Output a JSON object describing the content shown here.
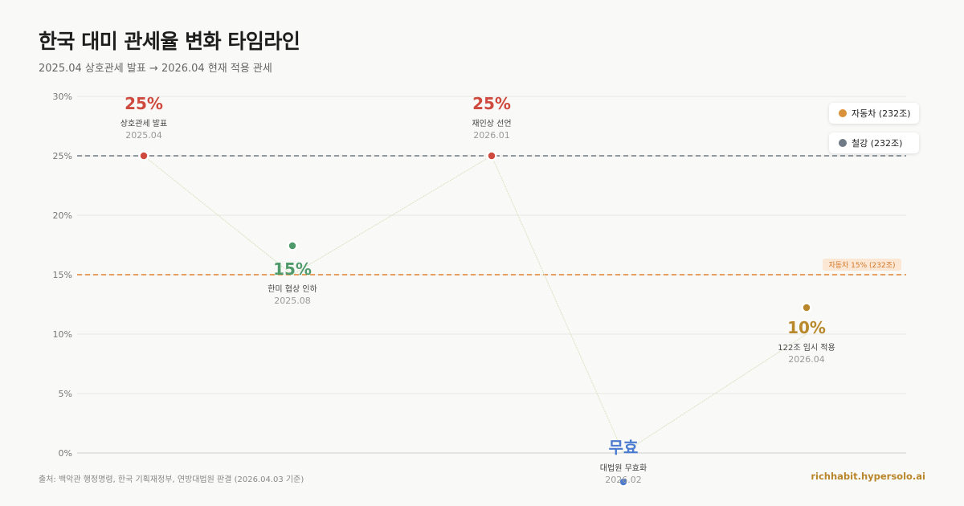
{
  "header": {
    "title": "한국 대미 관세율 변화 타임라인",
    "subtitle": "2025.04 상호관세 발표 → 2026.04 현재 적용 관세"
  },
  "footer": {
    "source": "출처: 백악관 행정명령, 한국 기획재정부, 연방대법원 판결 (2026.04.03 기준)",
    "brand": "richhabit.hypersolo.ai"
  },
  "legend": [
    {
      "label": "자동차 (232조)",
      "color": "#d9913a"
    },
    {
      "label": "철강 (232조)",
      "color": "#6f7a86"
    }
  ],
  "chart_data": {
    "type": "line",
    "yticks": [
      "0%",
      "5%",
      "10%",
      "15%",
      "20%",
      "25%",
      "30%"
    ],
    "ylim": [
      0,
      30
    ],
    "x": [
      "2025.04",
      "2025.08",
      "2026.01",
      "2026.02",
      "2026.04"
    ],
    "points": [
      {
        "date": "2025.04",
        "value": 25,
        "label": "25%",
        "desc": "상호관세 발표",
        "color": "#cf4a3e",
        "label_pos": "above"
      },
      {
        "date": "2025.08",
        "value": 15,
        "label": "15%",
        "desc": "한미 협상 인하",
        "color": "#4f9a6a",
        "label_pos": "below"
      },
      {
        "date": "2026.01",
        "value": 25,
        "label": "25%",
        "desc": "재인상 선언",
        "color": "#cf4a3e",
        "label_pos": "above"
      },
      {
        "date": "2026.02",
        "value": 0,
        "label": "무효",
        "desc": "대법원 무효화",
        "color": "#4a7bd0",
        "label_pos": "below"
      },
      {
        "date": "2026.04",
        "value": 10,
        "label": "10%",
        "desc": "122조 임시 적용",
        "color": "#b8882a",
        "label_pos": "below"
      }
    ],
    "reference_lines": [
      {
        "value": 25,
        "color": "#6f7a86",
        "label": ""
      },
      {
        "value": 15,
        "color": "#e0812c",
        "label": "자동차 15% (232조)"
      }
    ]
  }
}
